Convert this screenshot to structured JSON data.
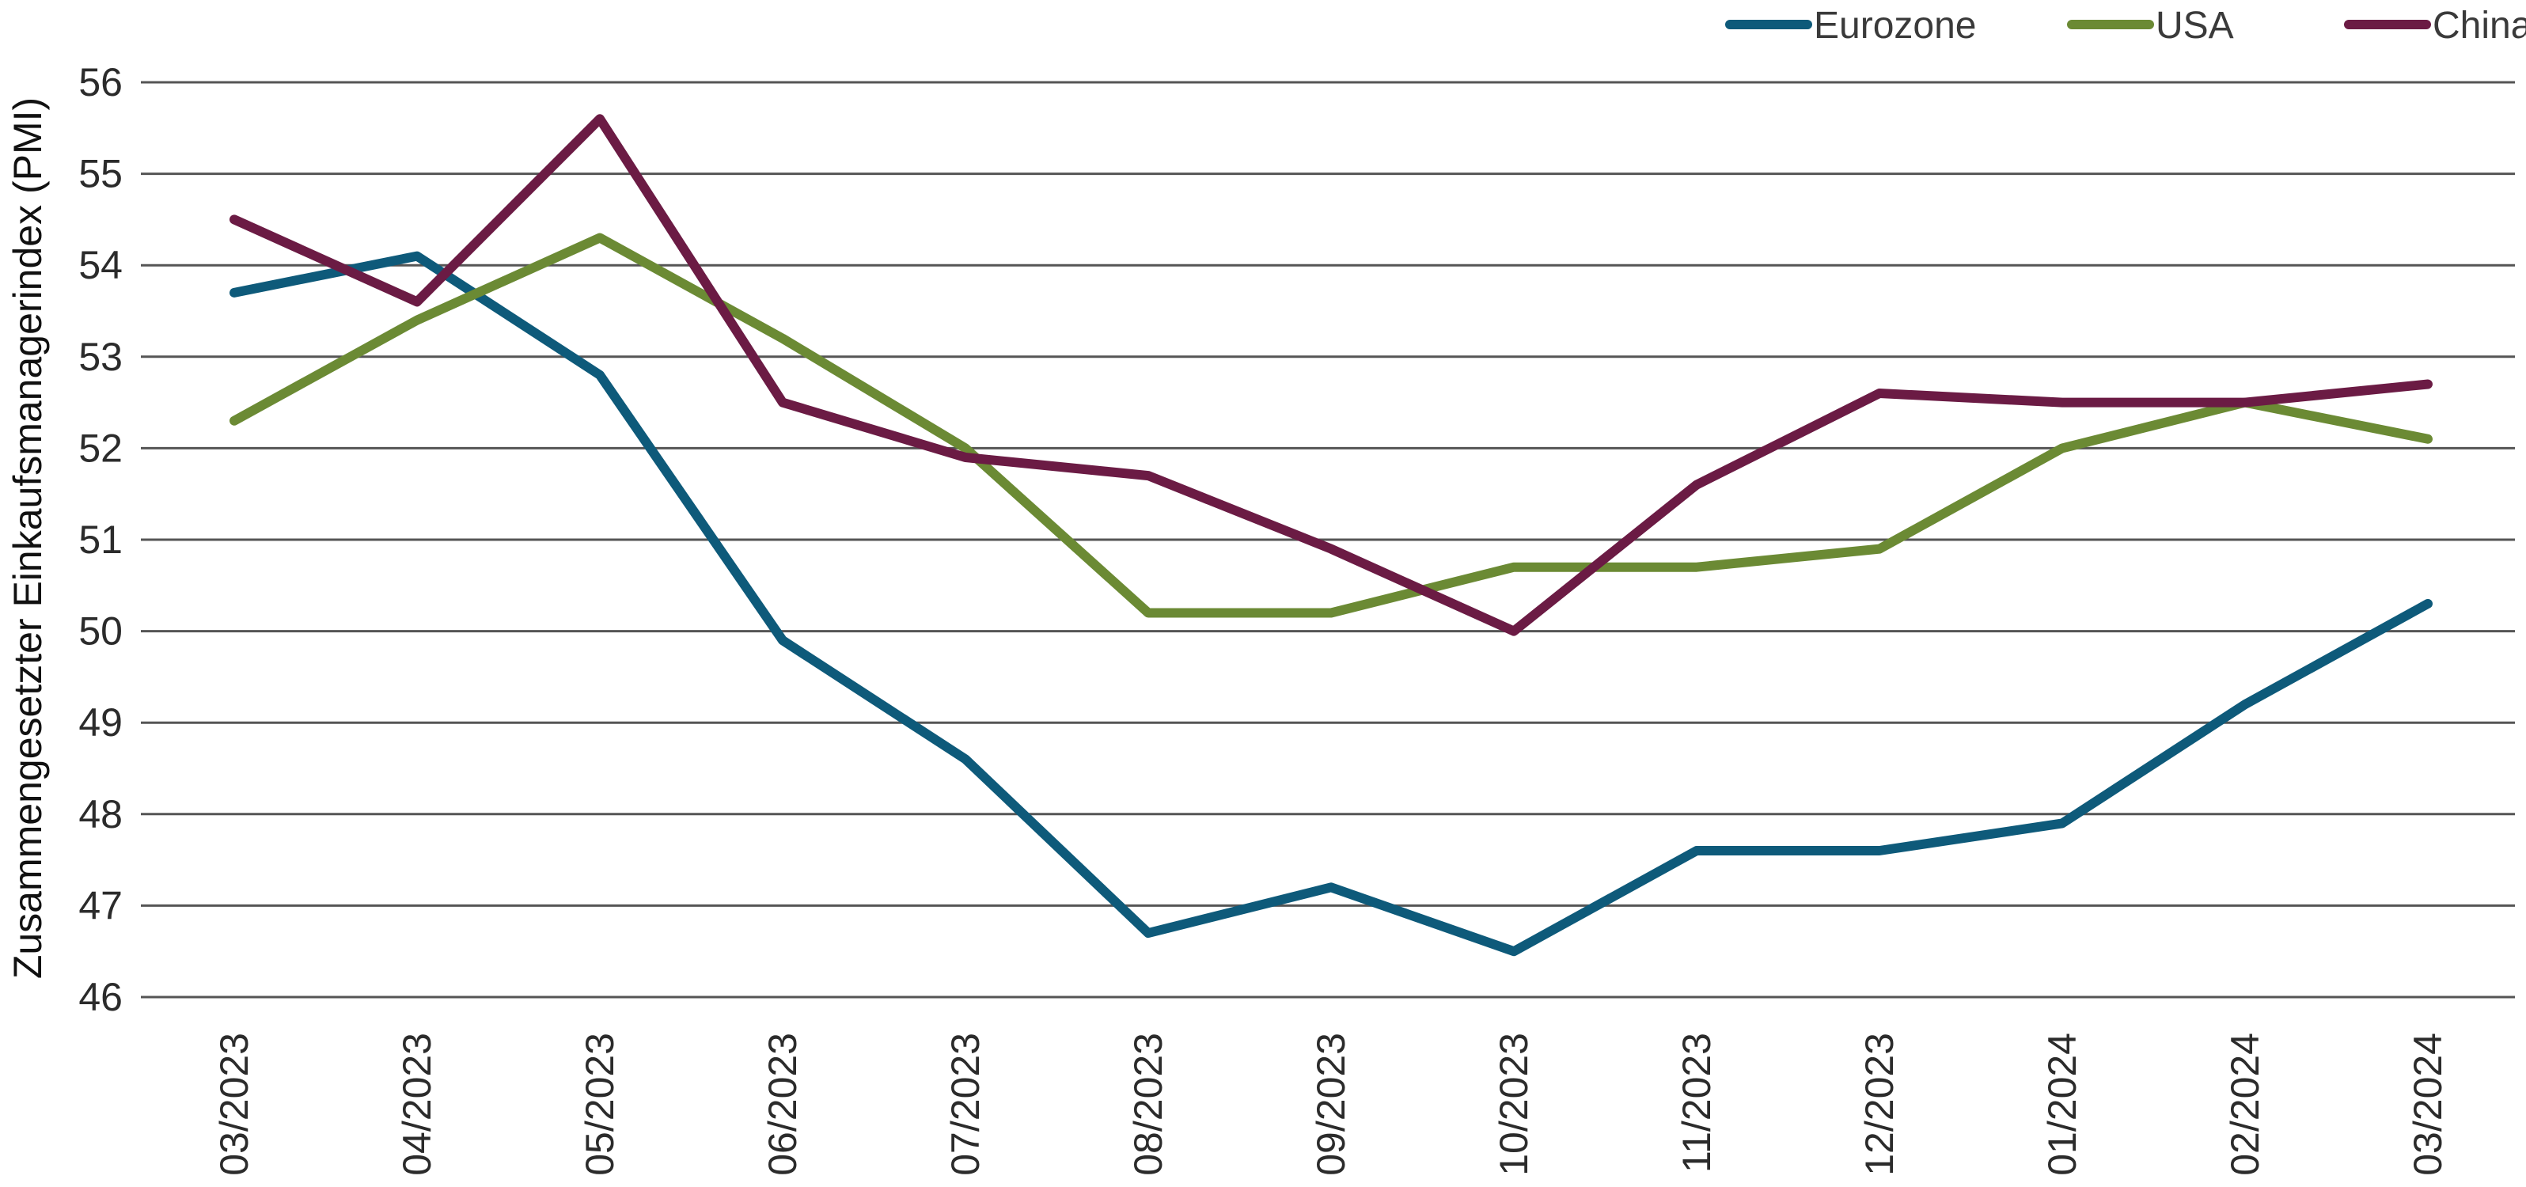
{
  "chart_data": {
    "type": "line",
    "title": "",
    "xlabel": "",
    "ylabel": "Zusammengesetzter Einkaufsmanagerindex (PMI)",
    "categories": [
      "03/2023",
      "04/2023",
      "05/2023",
      "06/2023",
      "07/2023",
      "08/2023",
      "09/2023",
      "10/2023",
      "11/2023",
      "12/2023",
      "01/2024",
      "02/2024",
      "03/2024"
    ],
    "ylim": [
      46,
      56
    ],
    "yticks": [
      46,
      47,
      48,
      49,
      50,
      51,
      52,
      53,
      54,
      55,
      56
    ],
    "grid": true,
    "legend_position": "top-right",
    "series": [
      {
        "name": "Eurozone",
        "color": "#0e5a7a",
        "values": [
          53.7,
          54.1,
          52.8,
          49.9,
          48.6,
          46.7,
          47.2,
          46.5,
          47.6,
          47.6,
          47.9,
          49.2,
          50.3
        ]
      },
      {
        "name": "USA",
        "color": "#6b8a34",
        "values": [
          52.3,
          53.4,
          54.3,
          53.2,
          52.0,
          50.2,
          50.2,
          50.7,
          50.7,
          50.9,
          52.0,
          52.5,
          52.1
        ]
      },
      {
        "name": "China",
        "color": "#6b1b44",
        "values": [
          54.5,
          53.6,
          55.6,
          52.5,
          51.9,
          51.7,
          50.9,
          50.0,
          51.6,
          52.6,
          52.5,
          52.5,
          52.7
        ]
      }
    ]
  }
}
